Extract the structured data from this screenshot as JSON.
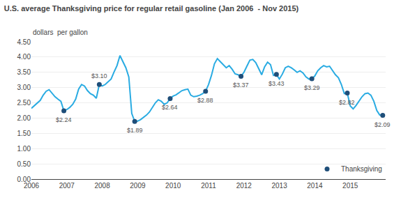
{
  "chart_data": {
    "type": "line",
    "title": "U.S. average Thanksgiving price for regular retail gasoline (Jan 2006  - Nov 2015)",
    "ylabel": "dollars  per gallon",
    "x": [
      2006.0,
      2006.083,
      2006.167,
      2006.25,
      2006.333,
      2006.417,
      2006.5,
      2006.583,
      2006.667,
      2006.75,
      2006.833,
      2006.917,
      2007.0,
      2007.083,
      2007.167,
      2007.25,
      2007.333,
      2007.417,
      2007.5,
      2007.583,
      2007.667,
      2007.75,
      2007.833,
      2007.917,
      2008.0,
      2008.083,
      2008.167,
      2008.25,
      2008.333,
      2008.417,
      2008.5,
      2008.583,
      2008.667,
      2008.75,
      2008.833,
      2008.917,
      2009.0,
      2009.083,
      2009.167,
      2009.25,
      2009.333,
      2009.417,
      2009.5,
      2009.583,
      2009.667,
      2009.75,
      2009.833,
      2009.917,
      2010.0,
      2010.083,
      2010.167,
      2010.25,
      2010.333,
      2010.417,
      2010.5,
      2010.583,
      2010.667,
      2010.75,
      2010.833,
      2010.917,
      2011.0,
      2011.083,
      2011.167,
      2011.25,
      2011.333,
      2011.417,
      2011.5,
      2011.583,
      2011.667,
      2011.75,
      2011.833,
      2011.917,
      2012.0,
      2012.083,
      2012.167,
      2012.25,
      2012.333,
      2012.417,
      2012.5,
      2012.583,
      2012.667,
      2012.75,
      2012.833,
      2012.917,
      2013.0,
      2013.083,
      2013.167,
      2013.25,
      2013.333,
      2013.417,
      2013.5,
      2013.583,
      2013.667,
      2013.75,
      2013.833,
      2013.917,
      2014.0,
      2014.083,
      2014.167,
      2014.25,
      2014.333,
      2014.417,
      2014.5,
      2014.583,
      2014.667,
      2014.75,
      2014.833,
      2014.917,
      2015.0,
      2015.083,
      2015.167,
      2015.25,
      2015.333,
      2015.417,
      2015.5,
      2015.583,
      2015.667,
      2015.75,
      2015.833,
      2015.917
    ],
    "series": [
      {
        "color": "#29abe2",
        "values": [
          2.32,
          2.4,
          2.48,
          2.58,
          2.75,
          2.88,
          2.93,
          2.82,
          2.7,
          2.62,
          2.55,
          2.24,
          2.28,
          2.35,
          2.45,
          2.62,
          2.95,
          3.1,
          3.05,
          2.9,
          2.8,
          2.75,
          2.65,
          3.1,
          3.05,
          3.1,
          3.2,
          3.28,
          3.51,
          3.72,
          4.05,
          3.85,
          3.65,
          3.35,
          2.15,
          1.89,
          1.9,
          1.95,
          2.02,
          2.1,
          2.2,
          2.35,
          2.5,
          2.6,
          2.55,
          2.45,
          2.5,
          2.64,
          2.72,
          2.76,
          2.83,
          2.9,
          2.93,
          2.95,
          2.75,
          2.7,
          2.72,
          2.75,
          2.8,
          2.88,
          3.1,
          3.4,
          3.78,
          3.95,
          3.85,
          3.75,
          3.65,
          3.72,
          3.6,
          3.45,
          3.42,
          3.37,
          3.5,
          3.7,
          3.9,
          3.92,
          3.82,
          3.62,
          3.42,
          3.68,
          3.83,
          3.75,
          3.4,
          3.43,
          3.28,
          3.44,
          3.65,
          3.7,
          3.65,
          3.58,
          3.5,
          3.55,
          3.48,
          3.35,
          3.28,
          3.29,
          3.38,
          3.55,
          3.65,
          3.72,
          3.68,
          3.7,
          3.55,
          3.42,
          3.32,
          3.1,
          2.8,
          2.82,
          2.4,
          2.3,
          2.42,
          2.55,
          2.7,
          2.8,
          2.82,
          2.75,
          2.55,
          2.25,
          2.1,
          2.09
        ]
      },
      {
        "name": "Thanksgiving",
        "type": "scatter",
        "color": "#1f4e79",
        "marker": "circle",
        "x": [
          2006.917,
          2007.917,
          2008.917,
          2009.917,
          2010.917,
          2011.917,
          2012.917,
          2013.917,
          2014.917,
          2015.917
        ],
        "values": [
          2.24,
          3.1,
          1.89,
          2.64,
          2.88,
          3.37,
          3.43,
          3.29,
          2.82,
          2.09
        ]
      }
    ],
    "annotations": [
      {
        "text": "$2.24",
        "x": 2006.917,
        "y": 2.24,
        "position": "below"
      },
      {
        "text": "$3.10",
        "x": 2007.917,
        "y": 3.1,
        "position": "above"
      },
      {
        "text": "$1.89",
        "x": 2008.917,
        "y": 1.89,
        "position": "below"
      },
      {
        "text": "$2.64",
        "x": 2009.917,
        "y": 2.64,
        "position": "below"
      },
      {
        "text": "$2.88",
        "x": 2010.917,
        "y": 2.88,
        "position": "below"
      },
      {
        "text": "$3.37",
        "x": 2011.917,
        "y": 3.37,
        "position": "below"
      },
      {
        "text": "$3.43",
        "x": 2012.917,
        "y": 3.43,
        "position": "below"
      },
      {
        "text": "$3.29",
        "x": 2013.917,
        "y": 3.29,
        "position": "below"
      },
      {
        "text": "$2.82",
        "x": 2014.917,
        "y": 2.82,
        "position": "below"
      },
      {
        "text": "$2.09",
        "x": 2015.917,
        "y": 2.09,
        "position": "below"
      }
    ],
    "xlim": [
      2006,
      2016
    ],
    "xticks": [
      2006,
      2007,
      2008,
      2009,
      2010,
      2011,
      2012,
      2013,
      2014,
      2015
    ],
    "ylim": [
      0.0,
      4.5
    ],
    "yticks": [
      {
        "value": 0.0,
        "label": "0.00"
      },
      {
        "value": 0.5,
        "label": "0.50"
      },
      {
        "value": 1.0,
        "label": "1.00"
      },
      {
        "value": 1.5,
        "label": "1.50"
      },
      {
        "value": 2.0,
        "label": "2.00"
      },
      {
        "value": 2.5,
        "label": "2.50"
      },
      {
        "value": 3.0,
        "label": "3.00"
      },
      {
        "value": 3.5,
        "label": "3.50"
      },
      {
        "value": 4.0,
        "label": "4.00"
      },
      {
        "value": 4.5,
        "label": "4.50"
      }
    ],
    "grid": "y",
    "legend": "lower right"
  }
}
